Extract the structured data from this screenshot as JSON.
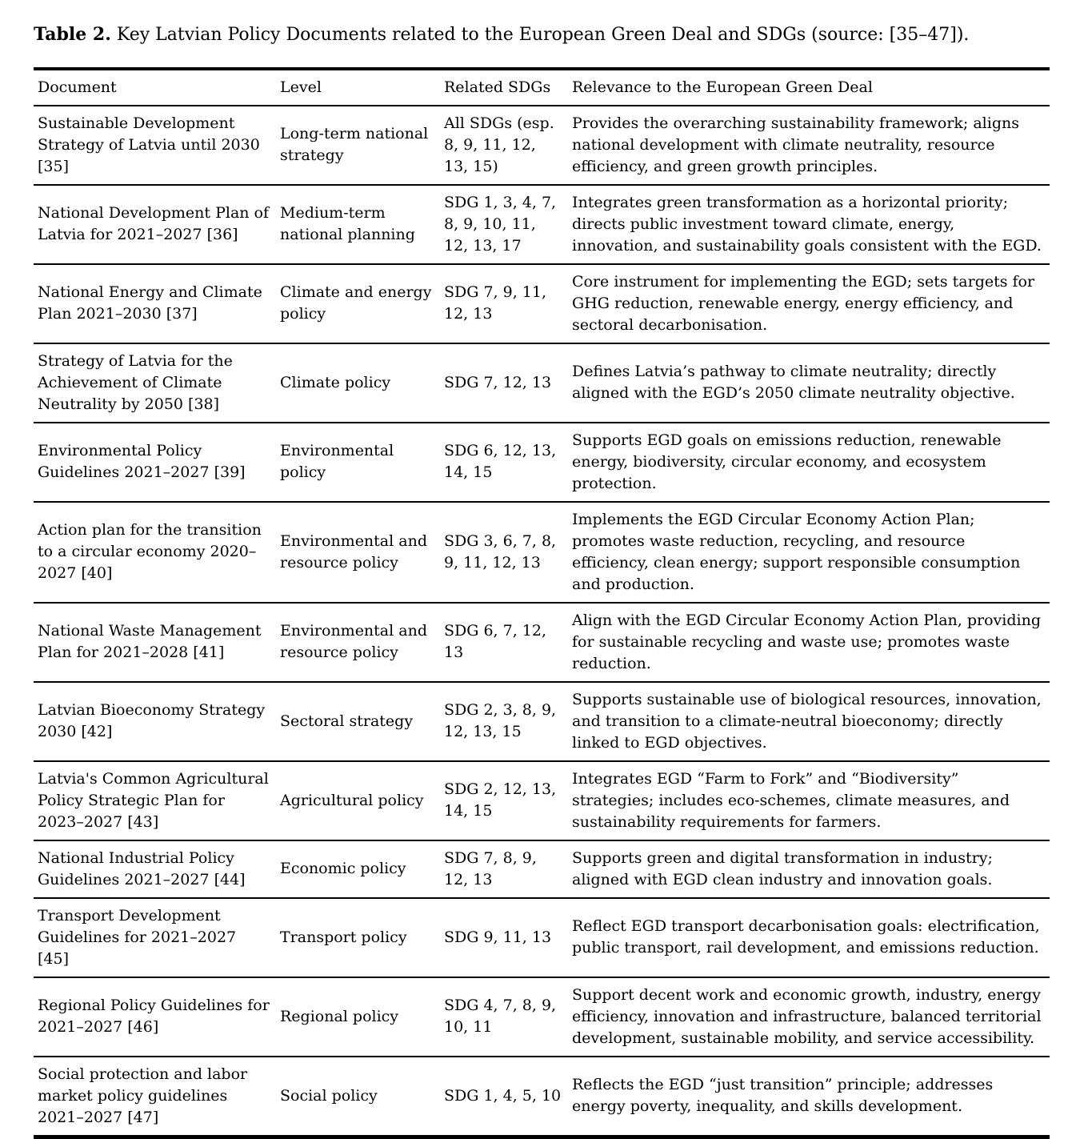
{
  "title": {
    "label": "Table 2.",
    "text": " Key Latvian Policy Documents related to the European Green Deal and SDGs (source: [35–47])."
  },
  "table": {
    "columns": [
      "Document",
      "Level",
      "Related SDGs",
      "Relevance to the European Green Deal"
    ],
    "rows": [
      {
        "document": "Sustainable Development Strategy of Latvia until 2030 [35]",
        "level": "Long-term national strategy",
        "sdgs": "All SDGs (esp. 8, 9, 11, 12, 13, 15)",
        "relevance": "Provides the overarching sustainability framework; aligns national development with climate neutrality, resource efficiency, and green growth principles."
      },
      {
        "document": "National Development Plan of Latvia for 2021–2027 [36]",
        "level": "Medium-term national planning",
        "sdgs": "SDG 1, 3, 4, 7, 8, 9, 10, 11, 12, 13, 17",
        "relevance": "Integrates green transformation as a horizontal priority; directs public investment toward climate, energy, innovation, and sustainability goals consistent with the EGD."
      },
      {
        "document": "National Energy and Climate Plan 2021–2030 [37]",
        "level": "Climate and energy policy",
        "sdgs": "SDG 7, 9, 11, 12, 13",
        "relevance": "Core instrument for implementing the EGD; sets targets for GHG reduction, renewable energy, energy efficiency, and sectoral decarbonisation."
      },
      {
        "document": "Strategy of Latvia for the Achievement of Climate Neutrality by 2050 [38]",
        "level": "Climate policy",
        "sdgs": "SDG 7, 12, 13",
        "relevance": "Defines Latvia’s pathway to climate neutrality; directly aligned with the EGD’s 2050 climate neutrality objective."
      },
      {
        "document": "Environmental Policy Guidelines 2021–2027 [39]",
        "level": "Environmental policy",
        "sdgs": "SDG 6, 12, 13, 14, 15",
        "relevance": "Supports EGD goals on emissions reduction, renewable energy, biodiversity, circular economy, and ecosystem protection."
      },
      {
        "document": "Action plan for the transition to a circular economy 2020–2027 [40]",
        "level": "Environmental and resource policy",
        "sdgs": "SDG 3, 6, 7, 8, 9, 11, 12, 13",
        "relevance": "Implements the EGD Circular Economy Action Plan; promotes waste reduction, recycling, and resource efficiency, clean energy; support responsible consumption and production."
      },
      {
        "document": "National Waste Management Plan for 2021–2028 [41]",
        "level": "Environmental and resource policy",
        "sdgs": "SDG 6, 7, 12, 13",
        "relevance": "Align with the EGD Circular Economy Action Plan, providing for sustainable recycling and waste use; promotes waste reduction."
      },
      {
        "document": "Latvian Bioeconomy Strategy 2030 [42]",
        "level": "Sectoral strategy",
        "sdgs": "SDG 2, 3, 8, 9, 12, 13, 15",
        "relevance": "Supports sustainable use of biological resources, innovation, and transition to a climate-neutral bioeconomy; directly linked to EGD objectives."
      },
      {
        "document": "Latvia's Common Agricultural Policy Strategic Plan for 2023–2027 [43]",
        "level": "Agricultural policy",
        "sdgs": "SDG 2, 12, 13, 14, 15",
        "relevance": "Integrates EGD “Farm to Fork” and “Biodiversity” strategies; includes eco-schemes, climate measures, and sustainability requirements for farmers."
      },
      {
        "document": "National Industrial Policy Guidelines 2021–2027 [44]",
        "level": "Economic policy",
        "sdgs": "SDG 7, 8, 9, 12, 13",
        "relevance": "Supports green and digital transformation in industry; aligned with EGD clean industry and innovation goals."
      },
      {
        "document": "Transport Development Guidelines for 2021–2027 [45]",
        "level": "Transport policy",
        "sdgs": "SDG 9, 11, 13",
        "relevance": "Reflect EGD transport decarbonisation goals: electrification, public transport, rail development, and emissions reduction."
      },
      {
        "document": "Regional Policy Guidelines for 2021–2027 [46]",
        "level": "Regional policy",
        "sdgs": "SDG 4, 7, 8, 9, 10, 11",
        "relevance": "Support decent work and economic growth, industry, energy efficiency, innovation and infrastructure, balanced territorial development, sustainable mobility, and service accessibility."
      },
      {
        "document": "Social protection and labor market policy guidelines 2021–2027 [47]",
        "level": "Social policy",
        "sdgs": "SDG 1, 4, 5, 10",
        "relevance": "Reflects the EGD “just transition” principle; addresses energy poverty, inequality, and skills development."
      }
    ]
  }
}
